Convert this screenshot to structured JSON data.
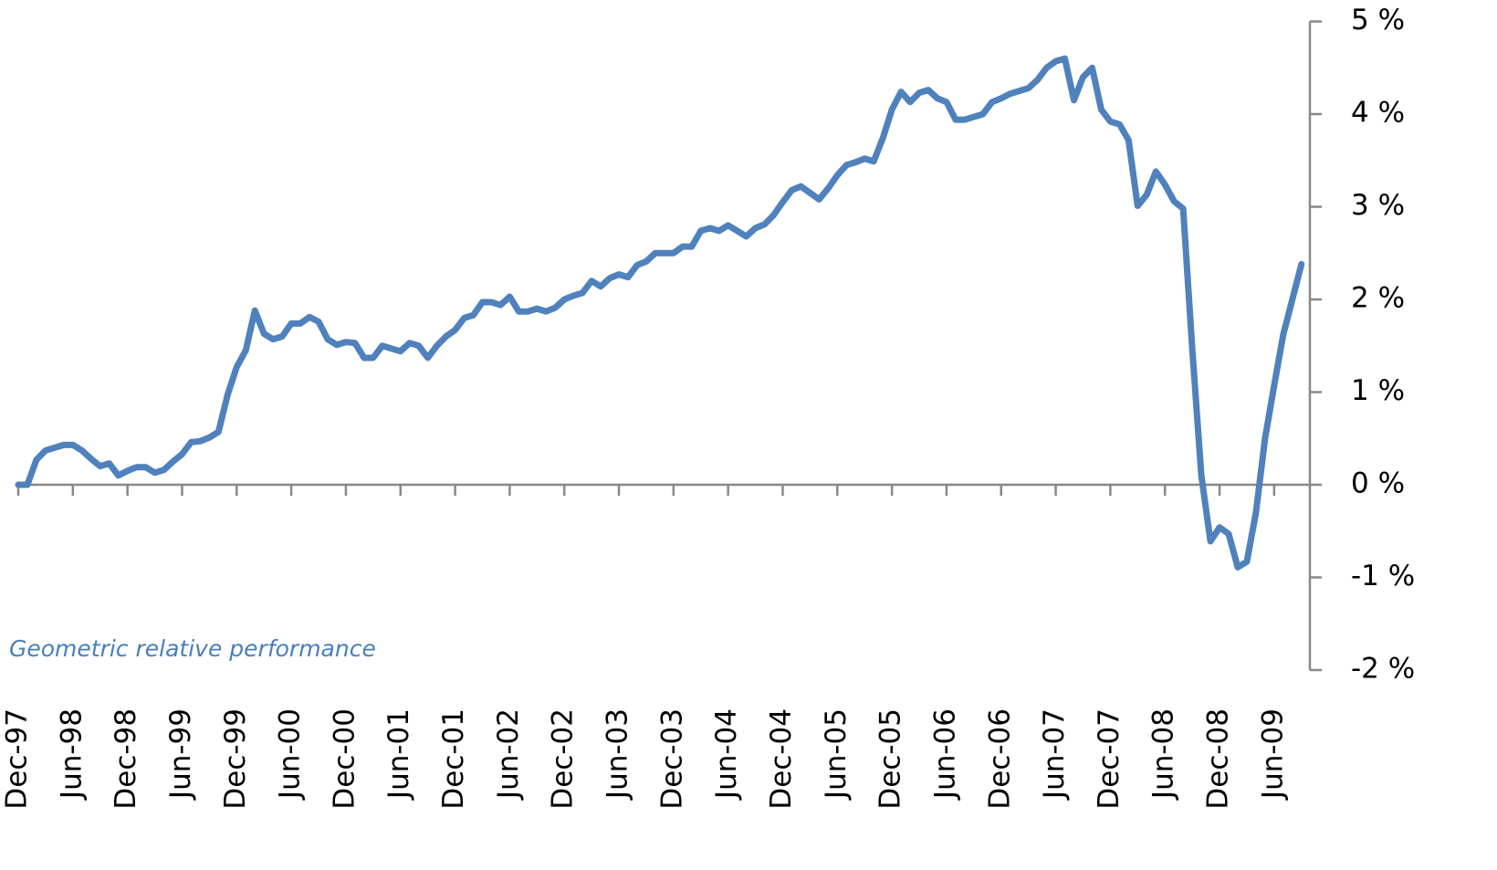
{
  "chart_data": {
    "type": "line",
    "annotation": "Geometric relative performance",
    "color": "#4f81bd",
    "categories": [
      "Dec-97",
      null,
      null,
      null,
      null,
      null,
      "Jun-98",
      null,
      null,
      null,
      null,
      null,
      "Dec-98",
      null,
      null,
      null,
      null,
      null,
      "Jun-99",
      null,
      null,
      null,
      null,
      null,
      "Dec-99",
      null,
      null,
      null,
      null,
      null,
      "Jun-00",
      null,
      null,
      null,
      null,
      null,
      "Dec-00",
      null,
      null,
      null,
      null,
      null,
      "Jun-01",
      null,
      null,
      null,
      null,
      null,
      "Dec-01",
      null,
      null,
      null,
      null,
      null,
      "Jun-02",
      null,
      null,
      null,
      null,
      null,
      "Dec-02",
      null,
      null,
      null,
      null,
      null,
      "Jun-03",
      null,
      null,
      null,
      null,
      null,
      "Dec-03",
      null,
      null,
      null,
      null,
      null,
      "Jun-04",
      null,
      null,
      null,
      null,
      null,
      "Dec-04",
      null,
      null,
      null,
      null,
      null,
      "Jun-05",
      null,
      null,
      null,
      null,
      null,
      "Dec-05",
      null,
      null,
      null,
      null,
      null,
      "Jun-06",
      null,
      null,
      null,
      null,
      null,
      "Dec-06",
      null,
      null,
      null,
      null,
      null,
      "Jun-07",
      null,
      null,
      null,
      null,
      null,
      "Dec-07",
      null,
      null,
      null,
      null,
      null,
      "Jun-08",
      null,
      null,
      null,
      null,
      null,
      "Dec-08",
      null,
      null,
      null,
      null,
      null,
      "Jun-09",
      null,
      null,
      null
    ],
    "values": [
      0,
      0,
      0.27,
      0.37,
      0.4,
      0.43,
      0.43,
      0.37,
      0.28,
      0.2,
      0.23,
      0.1,
      0.15,
      0.19,
      0.19,
      0.13,
      0.16,
      0.25,
      0.33,
      0.46,
      0.47,
      0.51,
      0.57,
      0.97,
      1.27,
      1.45,
      1.88,
      1.63,
      1.57,
      1.6,
      1.74,
      1.74,
      1.81,
      1.76,
      1.57,
      1.51,
      1.54,
      1.53,
      1.37,
      1.37,
      1.5,
      1.47,
      1.44,
      1.53,
      1.5,
      1.37,
      1.5,
      1.6,
      1.67,
      1.8,
      1.83,
      1.97,
      1.97,
      1.94,
      2.03,
      1.87,
      1.87,
      1.9,
      1.87,
      1.91,
      2.0,
      2.04,
      2.07,
      2.2,
      2.14,
      2.23,
      2.27,
      2.24,
      2.37,
      2.41,
      2.5,
      2.5,
      2.5,
      2.57,
      2.57,
      2.74,
      2.77,
      2.74,
      2.8,
      2.74,
      2.68,
      2.77,
      2.81,
      2.91,
      3.05,
      3.18,
      3.22,
      3.15,
      3.08,
      3.2,
      3.34,
      3.45,
      3.48,
      3.52,
      3.49,
      3.74,
      4.05,
      4.24,
      4.13,
      4.23,
      4.26,
      4.17,
      4.13,
      3.94,
      3.94,
      3.97,
      4.0,
      4.13,
      4.17,
      4.22,
      4.25,
      4.28,
      4.37,
      4.5,
      4.57,
      4.6,
      4.15,
      4.4,
      4.5,
      4.05,
      3.92,
      3.89,
      3.72,
      3.01,
      3.13,
      3.38,
      3.24,
      3.06,
      2.98,
      1.47,
      0.1,
      -0.61,
      -0.46,
      -0.53,
      -0.89,
      -0.83,
      -0.3,
      0.5,
      1.07,
      1.62,
      2.0,
      2.38
    ],
    "ylim": [
      -2,
      5
    ],
    "yticks": [
      {
        "value": -2,
        "label": "-2 %"
      },
      {
        "value": -1,
        "label": "-1 %"
      },
      {
        "value": 0,
        "label": "0 %"
      },
      {
        "value": 1,
        "label": "1 %"
      },
      {
        "value": 2,
        "label": "2 %"
      },
      {
        "value": 3,
        "label": "3 %"
      },
      {
        "value": 4,
        "label": "4 %"
      },
      {
        "value": 5,
        "label": "5 %"
      }
    ]
  }
}
